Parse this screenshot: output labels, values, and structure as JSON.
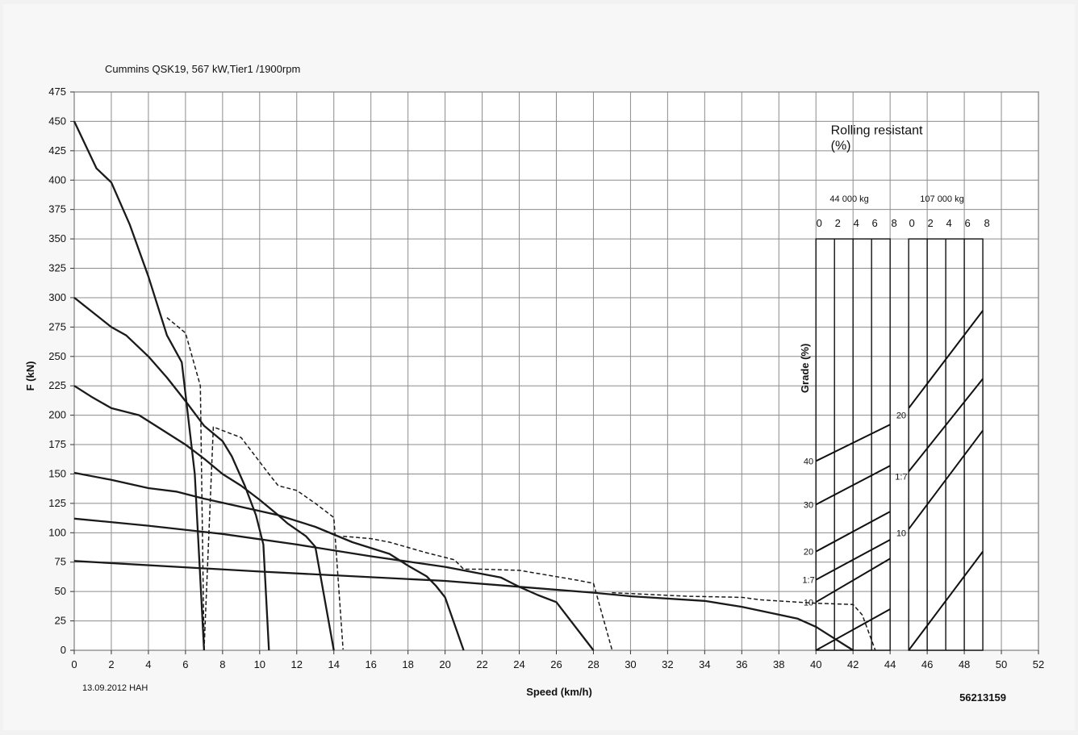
{
  "title": "Cummins QSK19, 567 kW,Tier1 /1900rpm",
  "xlabel": "Speed (km/h)",
  "ylabel": "F (kN)",
  "date_note": "13.09.2012  HAH",
  "doc_number": "56213159",
  "colors": {
    "background": "#f2f2f2",
    "plot_bg": "#ffffff",
    "grid": "#8c8c8c",
    "line": "#1a1a1a"
  },
  "chart_data": {
    "type": "line",
    "xlim": [
      0,
      52
    ],
    "ylim": [
      0,
      475
    ],
    "x_ticks": [
      0,
      2,
      4,
      6,
      8,
      10,
      12,
      14,
      16,
      18,
      20,
      22,
      24,
      26,
      28,
      30,
      32,
      34,
      36,
      38,
      40,
      42,
      44,
      46,
      48,
      50,
      52
    ],
    "y_ticks": [
      0,
      25,
      50,
      75,
      100,
      125,
      150,
      175,
      200,
      225,
      250,
      275,
      300,
      325,
      350,
      375,
      400,
      425,
      450,
      475
    ],
    "grid": true,
    "series": [
      {
        "style": "solid",
        "points": [
          [
            0,
            450
          ],
          [
            1.2,
            410
          ],
          [
            2,
            398
          ],
          [
            3,
            362
          ],
          [
            4,
            318
          ],
          [
            5,
            268
          ],
          [
            5.8,
            245
          ],
          [
            6.5,
            150
          ],
          [
            7,
            0
          ]
        ]
      },
      {
        "style": "solid",
        "points": [
          [
            0,
            300
          ],
          [
            2,
            275
          ],
          [
            2.8,
            268
          ],
          [
            4,
            250
          ],
          [
            5,
            232
          ],
          [
            6,
            212
          ],
          [
            7,
            191
          ],
          [
            8,
            178
          ],
          [
            8.5,
            165
          ],
          [
            9.2,
            140
          ],
          [
            9.8,
            115
          ],
          [
            10.2,
            90
          ],
          [
            10.5,
            0
          ]
        ]
      },
      {
        "style": "solid",
        "points": [
          [
            0,
            225
          ],
          [
            1,
            215
          ],
          [
            2,
            206
          ],
          [
            3.5,
            200
          ],
          [
            5,
            185
          ],
          [
            6,
            175
          ],
          [
            7,
            163
          ],
          [
            8,
            150
          ],
          [
            9,
            140
          ],
          [
            10,
            128
          ],
          [
            11,
            115
          ],
          [
            11.5,
            108
          ],
          [
            12.5,
            97
          ],
          [
            13,
            88
          ],
          [
            14,
            0
          ]
        ]
      },
      {
        "style": "solid",
        "points": [
          [
            0,
            151
          ],
          [
            2,
            145
          ],
          [
            4,
            138
          ],
          [
            5.5,
            135
          ],
          [
            7,
            129
          ],
          [
            9,
            122
          ],
          [
            11,
            115
          ],
          [
            13,
            105
          ],
          [
            15,
            92
          ],
          [
            17,
            82
          ],
          [
            18,
            72
          ],
          [
            19,
            63
          ],
          [
            19.5,
            55
          ],
          [
            20,
            45
          ],
          [
            21,
            0
          ]
        ]
      },
      {
        "style": "solid",
        "points": [
          [
            0,
            112
          ],
          [
            4,
            106
          ],
          [
            8,
            99
          ],
          [
            12,
            90
          ],
          [
            16,
            80
          ],
          [
            20,
            71
          ],
          [
            23,
            62
          ],
          [
            24,
            54
          ],
          [
            25,
            47
          ],
          [
            26,
            41
          ],
          [
            28,
            0
          ]
        ]
      },
      {
        "style": "solid",
        "points": [
          [
            0,
            76
          ],
          [
            10,
            67
          ],
          [
            20,
            59
          ],
          [
            24,
            54
          ],
          [
            28,
            49
          ],
          [
            30,
            46
          ],
          [
            34,
            42
          ],
          [
            36,
            37
          ],
          [
            39,
            27
          ],
          [
            40,
            20
          ],
          [
            42,
            0
          ]
        ]
      },
      {
        "style": "dashed",
        "points": [
          [
            5,
            283
          ],
          [
            6,
            270
          ],
          [
            6.8,
            225
          ],
          [
            7,
            0.6
          ],
          [
            7.5,
            190
          ],
          [
            8,
            187
          ],
          [
            9,
            181
          ],
          [
            10.5,
            150
          ],
          [
            11,
            140
          ],
          [
            12,
            136
          ],
          [
            13,
            125
          ],
          [
            14,
            113
          ],
          [
            14.5,
            0.6
          ]
        ]
      },
      {
        "style": "dashed",
        "points": [
          [
            14.5,
            97
          ],
          [
            16,
            95
          ],
          [
            17,
            92
          ],
          [
            19,
            83
          ],
          [
            20.5,
            77
          ],
          [
            21,
            69
          ],
          [
            22,
            69
          ],
          [
            24,
            68
          ],
          [
            27,
            60
          ],
          [
            28,
            57
          ],
          [
            29,
            0.6
          ]
        ]
      },
      {
        "style": "dashed",
        "points": [
          [
            29,
            49
          ],
          [
            33,
            46
          ],
          [
            36,
            45
          ],
          [
            37,
            43
          ],
          [
            40,
            40
          ],
          [
            42,
            39
          ],
          [
            42.5,
            30
          ],
          [
            43.2,
            0
          ]
        ]
      }
    ],
    "inset": {
      "title_line1": "Rolling resistant",
      "title_line2": "(%)",
      "grade_label": "Grade (%)",
      "left": {
        "mass_label": "44 000  kg",
        "rr_ticks": [
          "0",
          "2",
          "4",
          "6",
          "8"
        ]
      },
      "right": {
        "mass_label": "107 000  kg",
        "rr_ticks": [
          "0",
          "2",
          "4",
          "6",
          "8"
        ]
      },
      "left_grade_labels": [
        "40",
        "30",
        "20",
        "1:7",
        "10"
      ],
      "right_grade_labels": [
        "20",
        "1:7",
        "10"
      ],
      "left_lines": [
        [
          [
            40,
            161
          ],
          [
            44,
            192
          ]
        ],
        [
          [
            40,
            124
          ],
          [
            44,
            157
          ]
        ],
        [
          [
            40,
            84
          ],
          [
            44,
            118
          ]
        ],
        [
          [
            40,
            60
          ],
          [
            44,
            94
          ]
        ],
        [
          [
            40,
            41
          ],
          [
            44,
            78
          ]
        ],
        [
          [
            40,
            0
          ],
          [
            44,
            35
          ]
        ]
      ],
      "right_lines": [
        [
          [
            45,
            206
          ],
          [
            49,
            289
          ]
        ],
        [
          [
            45,
            152
          ],
          [
            49,
            231
          ]
        ],
        [
          [
            45,
            103
          ],
          [
            49,
            187
          ]
        ],
        [
          [
            45,
            0
          ],
          [
            49,
            84
          ]
        ]
      ]
    }
  }
}
